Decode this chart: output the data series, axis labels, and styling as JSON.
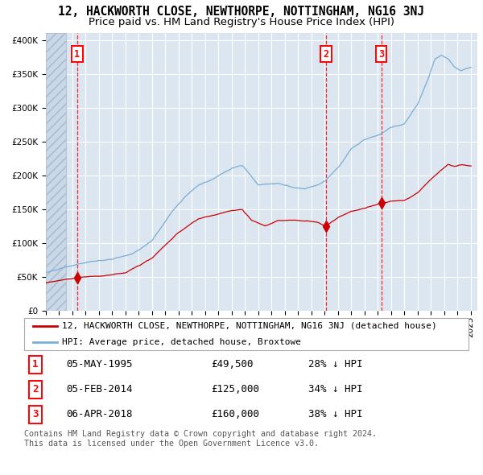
{
  "title": "12, HACKWORTH CLOSE, NEWTHORPE, NOTTINGHAM, NG16 3NJ",
  "subtitle": "Price paid vs. HM Land Registry's House Price Index (HPI)",
  "legend_red": "12, HACKWORTH CLOSE, NEWTHORPE, NOTTINGHAM, NG16 3NJ (detached house)",
  "legend_blue": "HPI: Average price, detached house, Broxtowe",
  "footer": "Contains HM Land Registry data © Crown copyright and database right 2024.\nThis data is licensed under the Open Government Licence v3.0.",
  "transactions": [
    {
      "num": 1,
      "date": "05-MAY-1995",
      "price": 49500,
      "pct": "28%",
      "dir": "↓"
    },
    {
      "num": 2,
      "date": "05-FEB-2014",
      "price": 125000,
      "pct": "34%",
      "dir": "↓"
    },
    {
      "num": 3,
      "date": "06-APR-2018",
      "price": 160000,
      "pct": "38%",
      "dir": "↓"
    }
  ],
  "transaction_dates_decimal": [
    1995.35,
    2014.09,
    2018.27
  ],
  "transaction_prices": [
    49500,
    125000,
    160000
  ],
  "ylim": [
    0,
    410000
  ],
  "yticks": [
    0,
    50000,
    100000,
    150000,
    200000,
    250000,
    300000,
    350000,
    400000
  ],
  "xlim_start": 1993.0,
  "xlim_end": 2025.5,
  "bg_color": "#dce6f1",
  "red_color": "#cc0000",
  "blue_color": "#7aadd4",
  "grid_color": "#ffffff",
  "title_fontsize": 10.5,
  "subtitle_fontsize": 9.5,
  "tick_label_fontsize": 7.5,
  "legend_fontsize": 8,
  "table_fontsize": 9,
  "footer_fontsize": 7.2
}
